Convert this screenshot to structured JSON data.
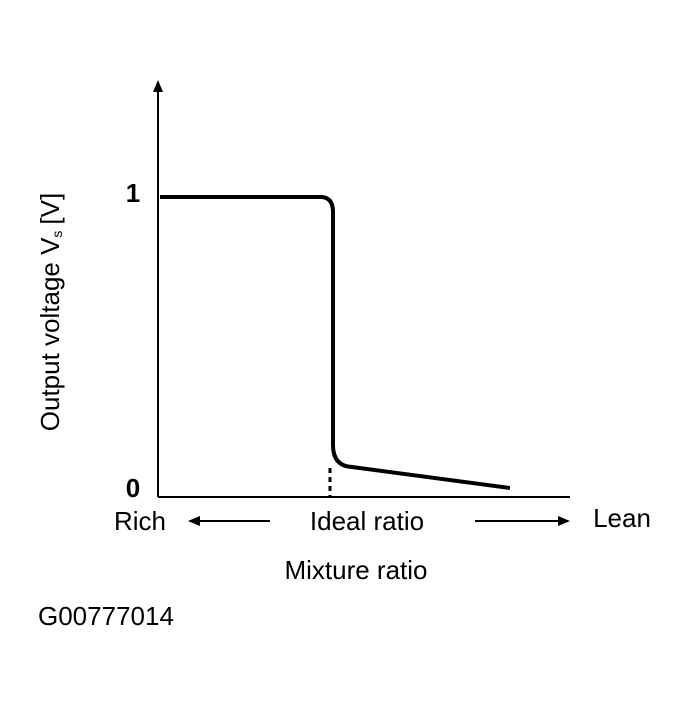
{
  "y_axis": {
    "ticks": [
      "1",
      "0"
    ],
    "label": {
      "main": "Output voltage V",
      "sub": "s",
      "unit": "[V]"
    }
  },
  "x_axis": {
    "left": "Rich",
    "center": "Ideal ratio",
    "right": "Lean",
    "label": "Mixture ratio"
  },
  "caption": "G00777014"
}
